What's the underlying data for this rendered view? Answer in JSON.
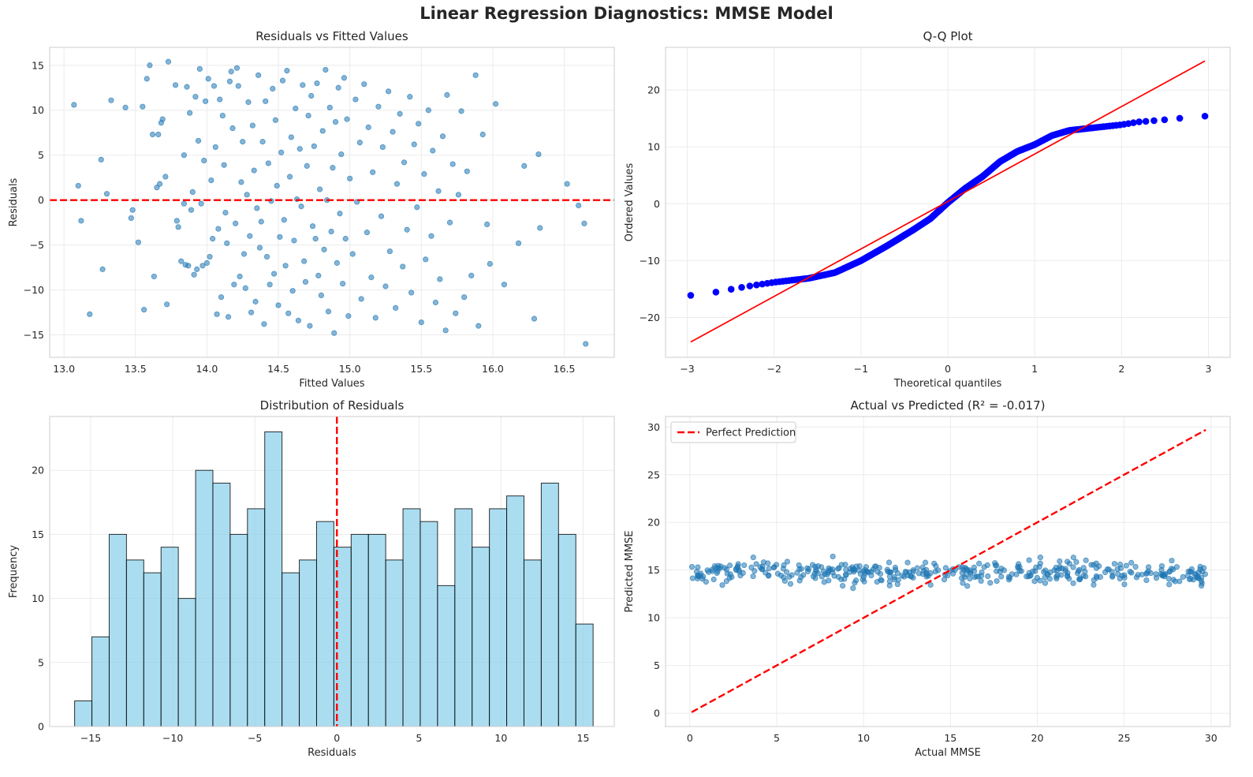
{
  "figure": {
    "suptitle": "Linear Regression Diagnostics: MMSE Model"
  },
  "colors": {
    "scatter": "#1f77b4",
    "ref_line": "#ff0000",
    "qq_points": "#0000ff",
    "hist_fill": "#87ceeb",
    "hist_edge": "#000000",
    "grid": "#ebebeb",
    "spine": "#cccccc"
  },
  "chart_data": [
    {
      "id": "residuals_vs_fitted",
      "type": "scatter",
      "title": "Residuals vs Fitted Values",
      "xlabel": "Fitted Values",
      "ylabel": "Residuals",
      "xlim": [
        12.9,
        16.85
      ],
      "ylim": [
        -17.5,
        17.0
      ],
      "xticks": [
        13.0,
        13.5,
        14.0,
        14.5,
        15.0,
        15.5,
        16.0,
        16.5
      ],
      "xtick_labels": [
        "13.0",
        "13.5",
        "14.0",
        "14.5",
        "15.0",
        "15.5",
        "16.0",
        "16.5"
      ],
      "yticks": [
        -15,
        -10,
        -5,
        0,
        5,
        10,
        15
      ],
      "ytick_labels": [
        "−15",
        "−10",
        "−5",
        "0",
        "5",
        "10",
        "15"
      ],
      "hline": {
        "y": 0,
        "style": "dashed"
      },
      "points": [
        [
          13.07,
          10.6
        ],
        [
          13.1,
          1.6
        ],
        [
          13.12,
          -2.3
        ],
        [
          13.18,
          -12.7
        ],
        [
          13.26,
          4.5
        ],
        [
          13.27,
          -7.7
        ],
        [
          13.3,
          0.7
        ],
        [
          13.33,
          11.1
        ],
        [
          13.43,
          10.3
        ],
        [
          13.47,
          -2.0
        ],
        [
          13.48,
          -1.1
        ],
        [
          13.52,
          -4.7
        ],
        [
          13.55,
          10.4
        ],
        [
          13.56,
          -12.2
        ],
        [
          13.58,
          13.5
        ],
        [
          13.6,
          15.0
        ],
        [
          13.62,
          7.3
        ],
        [
          13.63,
          -8.5
        ],
        [
          13.65,
          1.4
        ],
        [
          13.66,
          7.3
        ],
        [
          13.67,
          1.8
        ],
        [
          13.68,
          8.6
        ],
        [
          13.69,
          9.0
        ],
        [
          13.71,
          2.6
        ],
        [
          13.72,
          -11.6
        ],
        [
          13.73,
          15.4
        ],
        [
          13.78,
          12.8
        ],
        [
          13.79,
          -2.3
        ],
        [
          13.8,
          -3.0
        ],
        [
          13.82,
          -6.8
        ],
        [
          13.84,
          -0.4
        ],
        [
          13.84,
          5.0
        ],
        [
          13.85,
          -7.2
        ],
        [
          13.86,
          12.6
        ],
        [
          13.87,
          -7.3
        ],
        [
          13.88,
          9.7
        ],
        [
          13.89,
          -1.1
        ],
        [
          13.9,
          0.9
        ],
        [
          13.91,
          -8.3
        ],
        [
          13.92,
          11.5
        ],
        [
          13.93,
          -7.7
        ],
        [
          13.94,
          6.6
        ],
        [
          13.95,
          14.6
        ],
        [
          13.96,
          -0.4
        ],
        [
          13.97,
          -7.3
        ],
        [
          13.98,
          4.4
        ],
        [
          13.99,
          11.0
        ],
        [
          14.0,
          -7.0
        ],
        [
          14.01,
          13.5
        ],
        [
          14.02,
          -6.3
        ],
        [
          14.03,
          2.2
        ],
        [
          14.04,
          -4.3
        ],
        [
          14.05,
          12.7
        ],
        [
          14.06,
          5.9
        ],
        [
          14.07,
          -12.7
        ],
        [
          14.08,
          -3.2
        ],
        [
          14.09,
          11.2
        ],
        [
          14.1,
          -10.8
        ],
        [
          14.11,
          9.4
        ],
        [
          14.12,
          3.9
        ],
        [
          14.13,
          -1.4
        ],
        [
          14.14,
          -4.8
        ],
        [
          14.15,
          -13.0
        ],
        [
          14.16,
          13.2
        ],
        [
          14.17,
          14.3
        ],
        [
          14.18,
          8.0
        ],
        [
          14.19,
          -9.4
        ],
        [
          14.2,
          -2.6
        ],
        [
          14.21,
          14.7
        ],
        [
          14.22,
          12.7
        ],
        [
          14.23,
          -8.5
        ],
        [
          14.24,
          2.0
        ],
        [
          14.25,
          6.5
        ],
        [
          14.26,
          -6.0
        ],
        [
          14.27,
          -9.8
        ],
        [
          14.28,
          0.6
        ],
        [
          14.29,
          10.9
        ],
        [
          14.3,
          -4.0
        ],
        [
          14.31,
          -12.5
        ],
        [
          14.32,
          8.3
        ],
        [
          14.33,
          3.3
        ],
        [
          14.34,
          -11.3
        ],
        [
          14.35,
          -0.9
        ],
        [
          14.36,
          13.9
        ],
        [
          14.37,
          -5.3
        ],
        [
          14.38,
          -2.4
        ],
        [
          14.39,
          6.5
        ],
        [
          14.4,
          -13.8
        ],
        [
          14.41,
          11.0
        ],
        [
          14.42,
          -6.3
        ],
        [
          14.43,
          4.1
        ],
        [
          14.44,
          -9.4
        ],
        [
          14.45,
          -0.1
        ],
        [
          14.46,
          12.4
        ],
        [
          14.47,
          -8.2
        ],
        [
          14.48,
          8.9
        ],
        [
          14.49,
          1.6
        ],
        [
          14.5,
          -11.7
        ],
        [
          14.51,
          -4.1
        ],
        [
          14.52,
          5.3
        ],
        [
          14.53,
          13.3
        ],
        [
          14.54,
          -2.2
        ],
        [
          14.55,
          -7.3
        ],
        [
          14.56,
          14.4
        ],
        [
          14.57,
          -12.6
        ],
        [
          14.58,
          2.6
        ],
        [
          14.59,
          7.0
        ],
        [
          14.6,
          -10.1
        ],
        [
          14.61,
          -4.5
        ],
        [
          14.62,
          10.2
        ],
        [
          14.63,
          0.1
        ],
        [
          14.64,
          -13.4
        ],
        [
          14.65,
          5.7
        ],
        [
          14.66,
          -0.7
        ],
        [
          14.67,
          12.8
        ],
        [
          14.68,
          -6.8
        ],
        [
          14.69,
          -9.1
        ],
        [
          14.7,
          3.8
        ],
        [
          14.71,
          9.4
        ],
        [
          14.72,
          -14.0
        ],
        [
          14.73,
          11.6
        ],
        [
          14.74,
          -2.9
        ],
        [
          14.75,
          6.0
        ],
        [
          14.76,
          -4.3
        ],
        [
          14.77,
          13.0
        ],
        [
          14.78,
          -8.4
        ],
        [
          14.79,
          1.2
        ],
        [
          14.8,
          -10.6
        ],
        [
          14.81,
          7.7
        ],
        [
          14.82,
          -5.5
        ],
        [
          14.83,
          14.5
        ],
        [
          14.84,
          0.0
        ],
        [
          14.85,
          -12.4
        ],
        [
          14.86,
          10.3
        ],
        [
          14.87,
          -3.5
        ],
        [
          14.88,
          3.6
        ],
        [
          14.89,
          -14.8
        ],
        [
          14.9,
          8.7
        ],
        [
          14.91,
          -7.0
        ],
        [
          14.92,
          12.5
        ],
        [
          14.93,
          -1.5
        ],
        [
          14.94,
          5.1
        ],
        [
          14.95,
          -9.3
        ],
        [
          14.96,
          13.6
        ],
        [
          14.97,
          -4.3
        ],
        [
          14.98,
          9.0
        ],
        [
          14.99,
          -12.9
        ],
        [
          15.0,
          2.4
        ],
        [
          15.02,
          -6.0
        ],
        [
          15.04,
          11.2
        ],
        [
          15.05,
          -0.2
        ],
        [
          15.07,
          6.4
        ],
        [
          15.08,
          -11.0
        ],
        [
          15.1,
          12.9
        ],
        [
          15.12,
          -3.6
        ],
        [
          15.13,
          8.1
        ],
        [
          15.15,
          -8.6
        ],
        [
          15.16,
          3.1
        ],
        [
          15.18,
          -13.1
        ],
        [
          15.2,
          10.4
        ],
        [
          15.22,
          -1.8
        ],
        [
          15.23,
          5.9
        ],
        [
          15.25,
          -9.6
        ],
        [
          15.27,
          12.1
        ],
        [
          15.28,
          -5.7
        ],
        [
          15.3,
          7.6
        ],
        [
          15.32,
          -12.0
        ],
        [
          15.33,
          1.8
        ],
        [
          15.35,
          9.6
        ],
        [
          15.37,
          -7.4
        ],
        [
          15.38,
          4.2
        ],
        [
          15.4,
          -3.3
        ],
        [
          15.42,
          11.5
        ],
        [
          15.43,
          -10.3
        ],
        [
          15.45,
          6.2
        ],
        [
          15.47,
          -0.8
        ],
        [
          15.48,
          8.5
        ],
        [
          15.5,
          -13.6
        ],
        [
          15.52,
          2.9
        ],
        [
          15.53,
          -6.6
        ],
        [
          15.55,
          10.0
        ],
        [
          15.57,
          -4.0
        ],
        [
          15.58,
          5.5
        ],
        [
          15.6,
          -11.4
        ],
        [
          15.62,
          1.0
        ],
        [
          15.63,
          -8.8
        ],
        [
          15.65,
          7.1
        ],
        [
          15.67,
          -14.5
        ],
        [
          15.68,
          11.7
        ],
        [
          15.7,
          -2.5
        ],
        [
          15.72,
          4.0
        ],
        [
          15.74,
          -12.6
        ],
        [
          15.76,
          0.6
        ],
        [
          15.78,
          9.9
        ],
        [
          15.8,
          -10.8
        ],
        [
          15.82,
          3.2
        ],
        [
          15.85,
          -8.4
        ],
        [
          15.88,
          13.9
        ],
        [
          15.9,
          -14.0
        ],
        [
          15.93,
          7.3
        ],
        [
          15.96,
          -2.7
        ],
        [
          15.98,
          -7.1
        ],
        [
          16.02,
          10.7
        ],
        [
          16.08,
          -9.4
        ],
        [
          16.18,
          -4.8
        ],
        [
          16.22,
          3.8
        ],
        [
          16.29,
          -13.2
        ],
        [
          16.32,
          5.1
        ],
        [
          16.33,
          -3.1
        ],
        [
          16.52,
          1.8
        ],
        [
          16.6,
          -0.6
        ],
        [
          16.64,
          -2.6
        ],
        [
          16.65,
          -16.0
        ]
      ]
    },
    {
      "id": "qq_plot",
      "type": "scatter",
      "title": "Q-Q Plot",
      "xlabel": "Theoretical quantiles",
      "ylabel": "Ordered Values",
      "xlim": [
        -3.25,
        3.25
      ],
      "ylim": [
        -27.0,
        27.5
      ],
      "xticks": [
        -3,
        -2,
        -1,
        0,
        1,
        2,
        3
      ],
      "xtick_labels": [
        "−3",
        "−2",
        "−1",
        "0",
        "1",
        "2",
        "3"
      ],
      "yticks": [
        -20,
        -10,
        0,
        10,
        20
      ],
      "ytick_labels": [
        "−20",
        "−10",
        "0",
        "10",
        "20"
      ],
      "fit_line": [
        [
          -2.96,
          -24.3
        ],
        [
          2.96,
          25.1
        ]
      ],
      "knots": [
        [
          -2.96,
          -16.1
        ],
        [
          -2.65,
          -15.5
        ],
        [
          -2.45,
          -14.9
        ],
        [
          -2.3,
          -14.5
        ],
        [
          -2.0,
          -13.8
        ],
        [
          -1.6,
          -13.1
        ],
        [
          -1.3,
          -12.1
        ],
        [
          -1.0,
          -10.0
        ],
        [
          -0.7,
          -7.4
        ],
        [
          -0.4,
          -4.6
        ],
        [
          -0.2,
          -2.6
        ],
        [
          0.0,
          0.2
        ],
        [
          0.2,
          2.7
        ],
        [
          0.4,
          4.8
        ],
        [
          0.6,
          7.4
        ],
        [
          0.8,
          9.2
        ],
        [
          1.0,
          10.4
        ],
        [
          1.2,
          12.0
        ],
        [
          1.4,
          12.9
        ],
        [
          1.7,
          13.4
        ],
        [
          2.0,
          13.9
        ],
        [
          2.2,
          14.4
        ],
        [
          2.45,
          14.7
        ],
        [
          2.65,
          15.0
        ],
        [
          2.96,
          15.4
        ]
      ],
      "n_points": 400
    },
    {
      "id": "residual_histogram",
      "type": "bar",
      "title": "Distribution of Residuals",
      "xlabel": "Residuals",
      "ylabel": "Frequency",
      "xlim": [
        -17.5,
        16.9
      ],
      "ylim": [
        0,
        24.2
      ],
      "xticks": [
        -15,
        -10,
        -5,
        0,
        5,
        10,
        15
      ],
      "xtick_labels": [
        "−15",
        "−10",
        "−5",
        "0",
        "5",
        "10",
        "15"
      ],
      "yticks": [
        0,
        5,
        10,
        15,
        20
      ],
      "ytick_labels": [
        "0",
        "5",
        "10",
        "15",
        "20"
      ],
      "bin_start": -15.98,
      "bin_width": 1.053,
      "values": [
        2,
        7,
        15,
        13,
        12,
        14,
        10,
        20,
        19,
        15,
        17,
        23,
        12,
        13,
        16,
        14,
        15,
        15,
        13,
        17,
        16,
        11,
        17,
        14,
        17,
        18,
        13,
        19,
        15,
        8
      ],
      "vline": {
        "x": 0,
        "style": "dashed"
      }
    },
    {
      "id": "actual_vs_predicted",
      "type": "scatter",
      "title": "Actual vs Predicted (R² = -0.017)",
      "xlabel": "Actual MMSE",
      "ylabel": "Predicted MMSE",
      "xlim": [
        -1.4,
        31.1
      ],
      "ylim": [
        -1.4,
        31.1
      ],
      "xticks": [
        0,
        5,
        10,
        15,
        20,
        25,
        30
      ],
      "xtick_labels": [
        "0",
        "5",
        "10",
        "15",
        "20",
        "25",
        "30"
      ],
      "yticks": [
        0,
        5,
        10,
        15,
        20,
        25,
        30
      ],
      "ytick_labels": [
        "0",
        "5",
        "10",
        "15",
        "20",
        "25",
        "30"
      ],
      "ref_line": {
        "name": "Perfect Prediction",
        "from": [
          0.1,
          0.1
        ],
        "to": [
          29.7,
          29.7
        ]
      },
      "legend": {
        "position": "top-left",
        "entries": [
          "Perfect Prediction"
        ]
      },
      "predicted_range": [
        13.1,
        16.6
      ],
      "x_range": [
        0.1,
        29.7
      ],
      "n_points": 400
    }
  ]
}
